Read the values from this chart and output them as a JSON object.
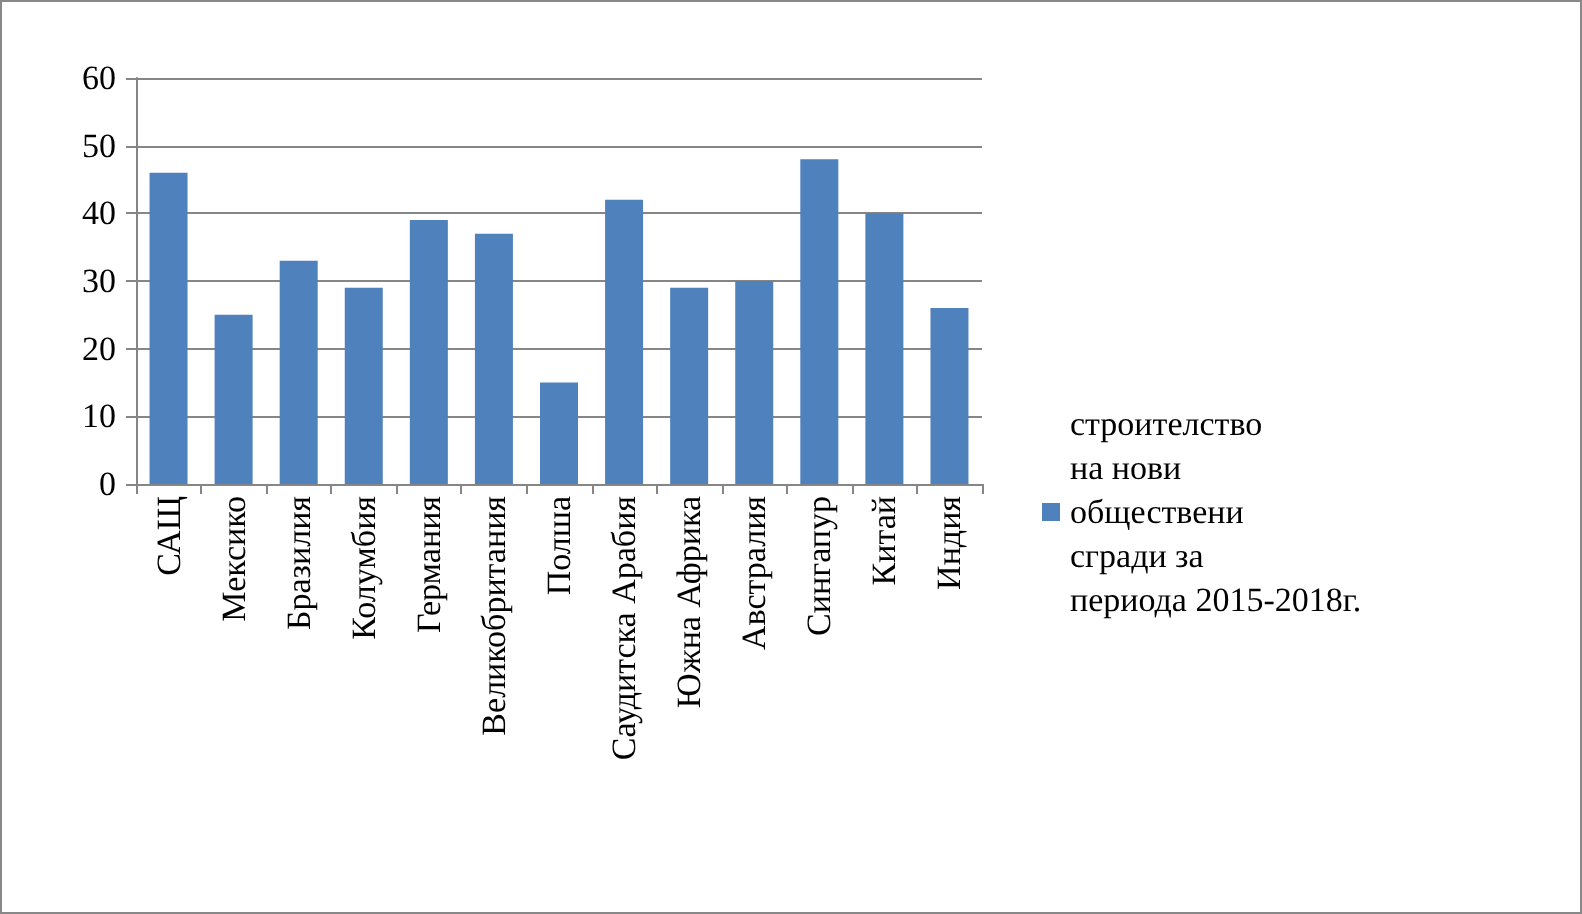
{
  "chart_data": {
    "type": "bar",
    "categories": [
      "САЩ",
      "Мексико",
      "Бразилия",
      "Колумбия",
      "Германия",
      "Великобритания",
      "Полша",
      "Саудитска Арабия",
      "Южна Африка",
      "Австралия",
      "Сингапур",
      "Китай",
      "Индия"
    ],
    "series": [
      {
        "name": "строителство на нови обществени сгради за периода 2015-2018г.",
        "color": "#4f81bd",
        "values": [
          46,
          25,
          33,
          29,
          39,
          37,
          15,
          42,
          29,
          30,
          48,
          40,
          26
        ]
      }
    ],
    "ylim": [
      0,
      60
    ],
    "yticks": [
      0,
      10,
      20,
      30,
      40,
      50,
      60
    ],
    "grid": "y",
    "legend": "right"
  }
}
